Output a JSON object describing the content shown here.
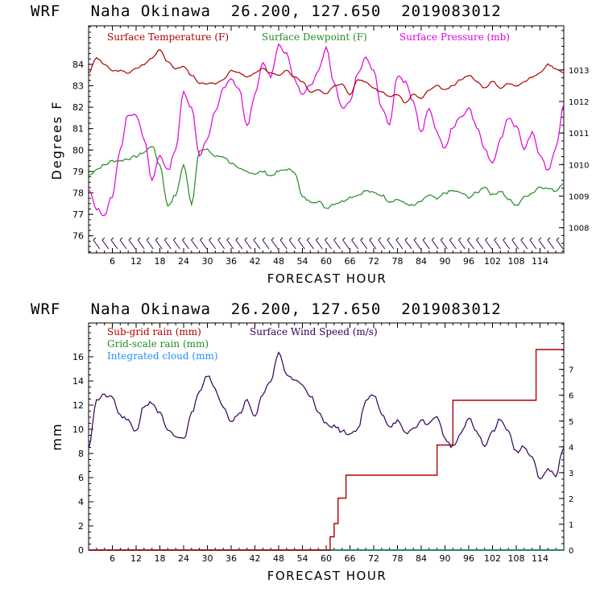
{
  "colors": {
    "temperature": "#b00000",
    "dewpoint": "#228b22",
    "pressure": "#dd00dd",
    "subgrid": "#b00000",
    "gridscale": "#228b22",
    "cloud": "#1e90ff",
    "wind": "#330055",
    "barb": "#330055"
  },
  "chart_data": [
    {
      "type": "line",
      "title": "WRF   Naha Okinawa  26.200, 127.650  2019083012",
      "xlabel": "FORECAST HOUR",
      "ylabel": "Degrees F",
      "xlim": [
        0,
        120
      ],
      "ylim": [
        75.2,
        85.8
      ],
      "y2lim": [
        1007.2,
        1014.4
      ],
      "x_ticks": [
        6,
        12,
        18,
        24,
        30,
        36,
        42,
        48,
        54,
        60,
        66,
        72,
        78,
        84,
        90,
        96,
        102,
        108,
        114
      ],
      "x_tick_labels": [
        "6",
        "12",
        "18",
        "24",
        "30",
        "36",
        "42",
        "48",
        "54",
        "60",
        "66",
        "72",
        "78",
        "84",
        "90",
        "96",
        "102",
        "108",
        "114"
      ],
      "y_ticks": [
        76,
        77,
        78,
        79,
        80,
        81,
        82,
        83,
        84
      ],
      "y_tick_labels": [
        "76",
        "77",
        "78",
        "79",
        "80",
        "81",
        "82",
        "83",
        "84"
      ],
      "y2_ticks": [
        1008,
        1009,
        1010,
        1011,
        1012,
        1013
      ],
      "y2_tick_labels": [
        "1008",
        "1009",
        "1010",
        "1011",
        "1012",
        "1013"
      ],
      "legend": [
        "Surface Temperature (F)",
        "Surface Dewpoint (F)",
        "Surface Pressure (mb)"
      ],
      "series": [
        {
          "name": "Surface Temperature (F)",
          "axis": "left",
          "x": [
            0,
            2,
            4,
            6,
            8,
            10,
            12,
            14,
            16,
            18,
            20,
            22,
            24,
            26,
            28,
            30,
            32,
            34,
            36,
            38,
            40,
            42,
            44,
            46,
            48,
            50,
            52,
            54,
            56,
            58,
            60,
            62,
            64,
            66,
            68,
            70,
            72,
            74,
            76,
            78,
            80,
            82,
            84,
            86,
            88,
            90,
            92,
            94,
            96,
            98,
            100,
            102,
            104,
            106,
            108,
            110,
            112,
            114,
            116,
            118,
            120
          ],
          "values": [
            83.6,
            84.3,
            84.0,
            83.7,
            83.7,
            83.6,
            83.8,
            84.0,
            84.3,
            84.7,
            84.1,
            83.8,
            83.9,
            83.5,
            83.1,
            83.1,
            83.1,
            83.3,
            83.7,
            83.6,
            83.4,
            83.6,
            83.8,
            83.6,
            83.5,
            83.7,
            83.4,
            83.2,
            82.7,
            82.8,
            82.6,
            83.0,
            83.1,
            82.6,
            83.3,
            83.2,
            82.9,
            82.7,
            82.5,
            82.6,
            82.2,
            82.6,
            82.4,
            82.8,
            83.0,
            82.8,
            83.0,
            83.3,
            83.5,
            83.2,
            82.9,
            83.2,
            82.9,
            83.1,
            83.0,
            83.2,
            83.4,
            83.6,
            84.0,
            83.8,
            83.6
          ]
        },
        {
          "name": "Surface Dewpoint (F)",
          "axis": "left",
          "x": [
            0,
            2,
            4,
            6,
            8,
            10,
            12,
            14,
            16,
            18,
            20,
            22,
            24,
            26,
            28,
            30,
            32,
            34,
            36,
            38,
            40,
            42,
            44,
            46,
            48,
            50,
            52,
            54,
            56,
            58,
            60,
            62,
            64,
            66,
            68,
            70,
            72,
            74,
            76,
            78,
            80,
            82,
            84,
            86,
            88,
            90,
            92,
            94,
            96,
            98,
            100,
            102,
            104,
            106,
            108,
            110,
            112,
            114,
            116,
            118,
            120
          ],
          "values": [
            78.8,
            79.1,
            79.3,
            79.5,
            79.5,
            79.6,
            79.7,
            79.9,
            80.2,
            79.3,
            77.4,
            77.9,
            79.3,
            77.5,
            80.0,
            80.0,
            79.7,
            79.7,
            79.4,
            79.1,
            79.0,
            78.9,
            79.0,
            78.8,
            79.0,
            79.1,
            79.0,
            77.8,
            77.6,
            77.6,
            77.3,
            77.5,
            77.6,
            77.8,
            77.9,
            78.1,
            78.0,
            77.9,
            77.6,
            77.7,
            77.5,
            77.4,
            77.6,
            77.9,
            77.7,
            78.0,
            78.1,
            78.0,
            77.8,
            78.0,
            78.3,
            77.9,
            78.1,
            77.7,
            77.4,
            77.8,
            78.0,
            78.3,
            78.2,
            78.1,
            78.5
          ]
        },
        {
          "name": "Surface Pressure (mb)",
          "axis": "right",
          "x": [
            0,
            2,
            4,
            6,
            8,
            10,
            12,
            14,
            16,
            18,
            20,
            22,
            24,
            26,
            28,
            30,
            32,
            34,
            36,
            38,
            40,
            42,
            44,
            46,
            48,
            50,
            52,
            54,
            56,
            58,
            60,
            62,
            64,
            66,
            68,
            70,
            72,
            74,
            76,
            78,
            80,
            82,
            84,
            86,
            88,
            90,
            92,
            94,
            96,
            98,
            100,
            102,
            104,
            106,
            108,
            110,
            112,
            114,
            116,
            118,
            120
          ],
          "values": [
            1009.2,
            1008.6,
            1008.4,
            1009.0,
            1010.5,
            1011.6,
            1011.6,
            1010.8,
            1009.5,
            1010.3,
            1009.8,
            1010.5,
            1012.3,
            1011.8,
            1010.3,
            1010.8,
            1011.7,
            1012.4,
            1012.7,
            1012.4,
            1011.2,
            1012.2,
            1013.2,
            1012.8,
            1013.8,
            1013.5,
            1012.7,
            1012.2,
            1012.5,
            1013.0,
            1013.7,
            1012.6,
            1011.8,
            1012.0,
            1012.9,
            1013.4,
            1013.0,
            1011.8,
            1011.3,
            1012.8,
            1012.6,
            1012.0,
            1011.0,
            1011.8,
            1011.0,
            1010.5,
            1011.2,
            1011.5,
            1011.8,
            1011.2,
            1010.5,
            1010.0,
            1010.8,
            1011.5,
            1011.2,
            1010.5,
            1011.0,
            1010.3,
            1009.8,
            1010.5,
            1011.9
          ]
        }
      ],
      "wind_barbs": true
    },
    {
      "type": "line",
      "title": "WRF   Naha Okinawa  26.200, 127.650  2019083012",
      "xlabel": "FORECAST HOUR",
      "ylabel": "mm",
      "xlim": [
        0,
        120
      ],
      "ylim": [
        0,
        18.8
      ],
      "y2lim": [
        0,
        8.8
      ],
      "x_ticks": [
        6,
        12,
        18,
        24,
        30,
        36,
        42,
        48,
        54,
        60,
        66,
        72,
        78,
        84,
        90,
        96,
        102,
        108,
        114
      ],
      "x_tick_labels": [
        "6",
        "12",
        "18",
        "24",
        "30",
        "36",
        "42",
        "48",
        "54",
        "60",
        "66",
        "72",
        "78",
        "84",
        "90",
        "96",
        "102",
        "108",
        "114"
      ],
      "y_ticks": [
        0,
        2,
        4,
        6,
        8,
        10,
        12,
        14,
        16
      ],
      "y_tick_labels": [
        "0",
        "2",
        "4",
        "6",
        "8",
        "10",
        "12",
        "14",
        "16"
      ],
      "y2_ticks": [
        0,
        1,
        2,
        3,
        4,
        5,
        6,
        7
      ],
      "y2_tick_labels": [
        "0",
        "1",
        "2",
        "3",
        "4",
        "5",
        "6",
        "7"
      ],
      "legend": [
        "Sub-grid rain (mm)",
        "Grid-scale rain (mm)",
        "Integrated cloud (mm)",
        "Surface Wind Speed (m/s)"
      ],
      "series": [
        {
          "name": "Sub-grid rain (mm)",
          "axis": "left",
          "step": true,
          "x": [
            0,
            60,
            61,
            62,
            63,
            64,
            65,
            66,
            87,
            88,
            91,
            92,
            112,
            113,
            120
          ],
          "values": [
            0,
            0,
            1.1,
            2.2,
            4.3,
            4.3,
            6.2,
            6.2,
            6.2,
            8.7,
            8.7,
            12.4,
            12.4,
            16.6,
            16.6
          ]
        },
        {
          "name": "Grid-scale rain (mm)",
          "axis": "left",
          "x": [
            0,
            120
          ],
          "values": [
            0,
            0
          ]
        },
        {
          "name": "Integrated cloud (mm)",
          "axis": "left",
          "x": [
            0,
            120
          ],
          "values": [
            0,
            0
          ]
        },
        {
          "name": "Surface Wind Speed (m/s)",
          "axis": "right",
          "x": [
            0,
            2,
            4,
            6,
            8,
            10,
            12,
            14,
            16,
            18,
            20,
            22,
            24,
            26,
            28,
            30,
            32,
            34,
            36,
            38,
            40,
            42,
            44,
            46,
            48,
            50,
            52,
            54,
            56,
            58,
            60,
            62,
            64,
            66,
            68,
            70,
            72,
            74,
            76,
            78,
            80,
            82,
            84,
            86,
            88,
            90,
            92,
            94,
            96,
            98,
            100,
            102,
            104,
            106,
            108,
            110,
            112,
            114,
            116,
            118,
            120
          ],
          "values": [
            4.0,
            5.8,
            6.0,
            5.9,
            5.2,
            5.0,
            4.6,
            5.6,
            5.7,
            5.3,
            4.6,
            4.4,
            4.3,
            5.3,
            6.2,
            6.8,
            6.2,
            5.6,
            5.0,
            5.3,
            5.8,
            5.2,
            6.0,
            6.6,
            7.6,
            6.8,
            6.6,
            6.4,
            6.0,
            5.3,
            4.9,
            4.8,
            4.6,
            4.5,
            4.7,
            5.8,
            6.0,
            5.3,
            4.8,
            5.0,
            4.5,
            4.7,
            5.0,
            4.9,
            5.2,
            4.3,
            4.0,
            4.5,
            5.1,
            4.6,
            4.0,
            4.6,
            5.1,
            4.6,
            3.8,
            4.0,
            3.6,
            2.7,
            3.1,
            2.9,
            4.0
          ]
        }
      ]
    }
  ]
}
